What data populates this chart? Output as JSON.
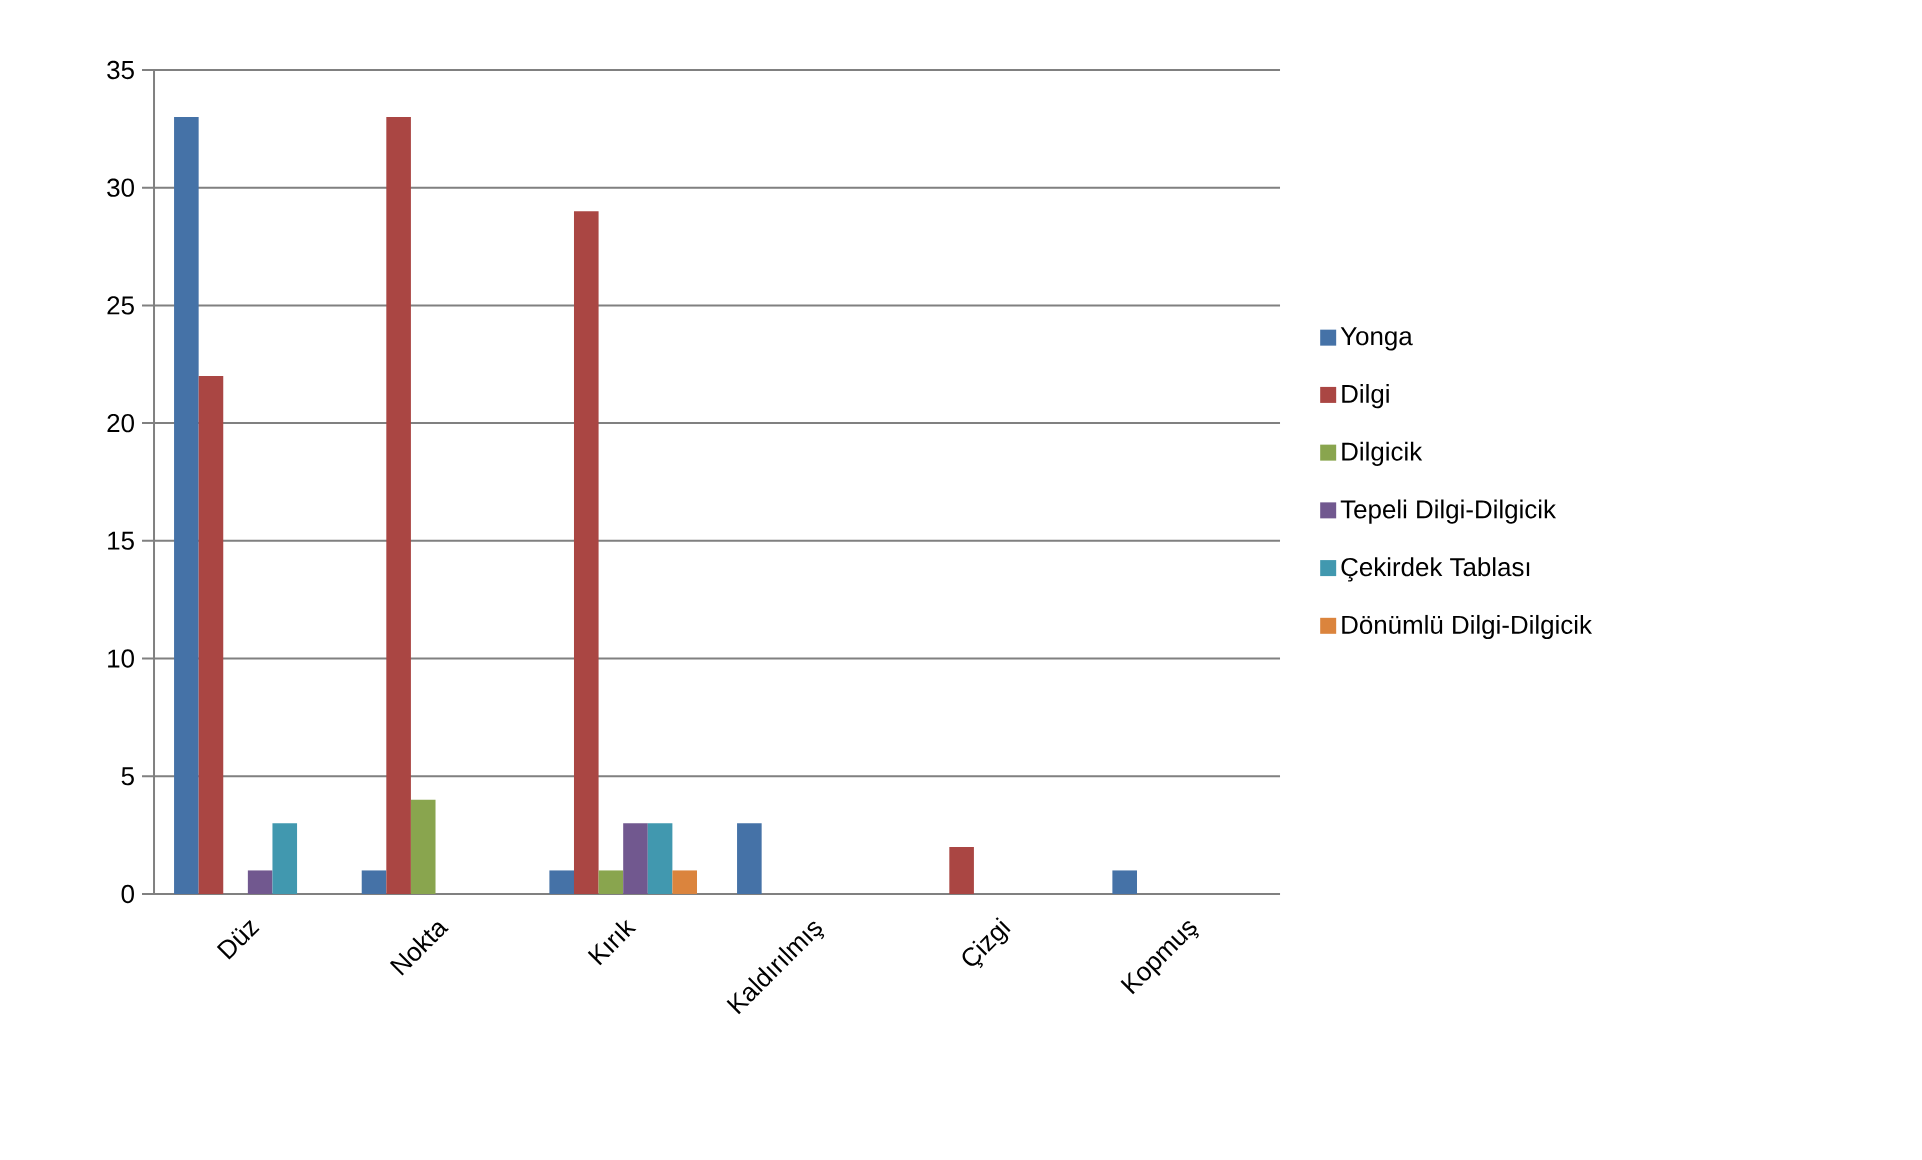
{
  "chart_data": {
    "type": "bar",
    "categories": [
      "Düz",
      "Nokta",
      "Kırık",
      "Kaldırılmış",
      "Çizgi",
      "Kopmuş"
    ],
    "series": [
      {
        "name": "Yonga",
        "color": "#4572a7",
        "values": [
          33,
          1,
          1,
          3,
          0,
          1
        ]
      },
      {
        "name": "Dilgi",
        "color": "#aa4643",
        "values": [
          22,
          33,
          29,
          0,
          2,
          0
        ]
      },
      {
        "name": "Dilgicik",
        "color": "#89a54e",
        "values": [
          0,
          4,
          1,
          0,
          0,
          0
        ]
      },
      {
        "name": "Tepeli Dilgi-Dilgicik",
        "color": "#71588f",
        "values": [
          1,
          0,
          3,
          0,
          0,
          0
        ]
      },
      {
        "name": "Çekirdek Tablası",
        "color": "#4198af",
        "values": [
          3,
          0,
          3,
          0,
          0,
          0
        ]
      },
      {
        "name": "Dönümlü Dilgi-Dilgicik",
        "color": "#db843d",
        "values": [
          0,
          0,
          1,
          0,
          0,
          0
        ]
      }
    ],
    "ylim": [
      0,
      35
    ],
    "yticks": [
      0,
      5,
      10,
      15,
      20,
      25,
      30,
      35
    ],
    "grid": "y",
    "legend": "right"
  }
}
